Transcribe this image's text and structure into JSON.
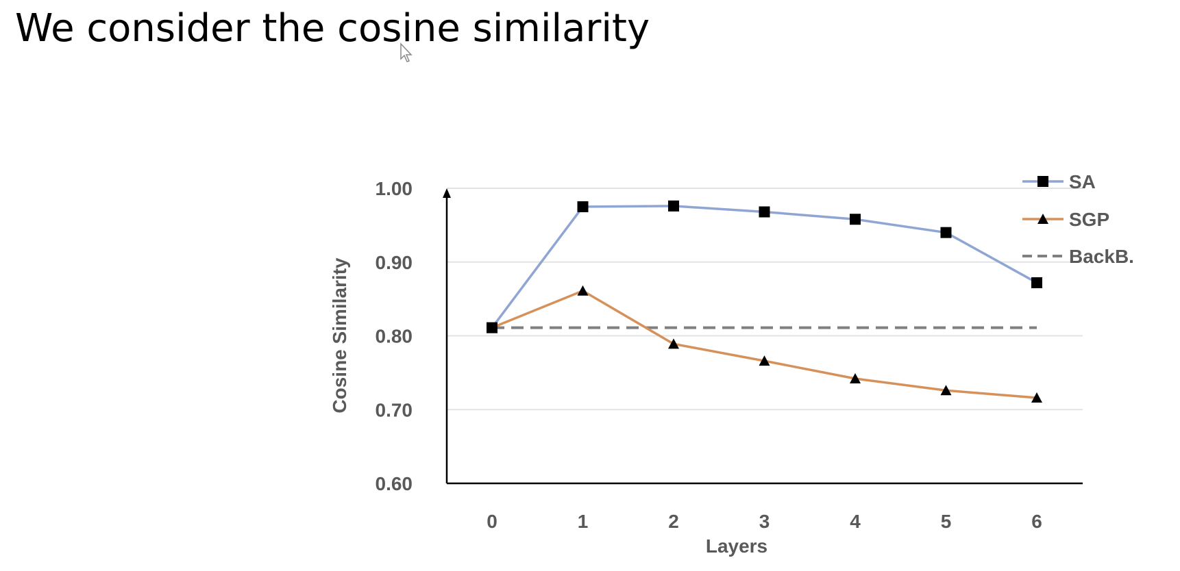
{
  "slide": {
    "title": "We consider the cosine similarity"
  },
  "chart_data": {
    "type": "line",
    "xlabel": "Layers",
    "ylabel": "Cosine Similarity",
    "categories": [
      "0",
      "1",
      "2",
      "3",
      "4",
      "5",
      "6"
    ],
    "ylim": [
      0.6,
      1.0
    ],
    "yticks": [
      "0.60",
      "0.70",
      "0.80",
      "0.90",
      "1.00"
    ],
    "grid": true,
    "legend_position": "top-right",
    "series": [
      {
        "name": "SA",
        "values": [
          0.811,
          0.975,
          0.976,
          0.968,
          0.958,
          0.94,
          0.872
        ],
        "color": "#8fa5d3",
        "marker": "square"
      },
      {
        "name": "SGP",
        "values": [
          0.811,
          0.861,
          0.789,
          0.766,
          0.742,
          0.726,
          0.716
        ],
        "color": "#d6915a",
        "marker": "triangle"
      },
      {
        "name": "BackB.",
        "values": [
          0.811,
          0.811,
          0.811,
          0.811,
          0.811,
          0.811,
          0.811
        ],
        "color": "#808080",
        "marker": "none",
        "dashed": true
      }
    ]
  }
}
